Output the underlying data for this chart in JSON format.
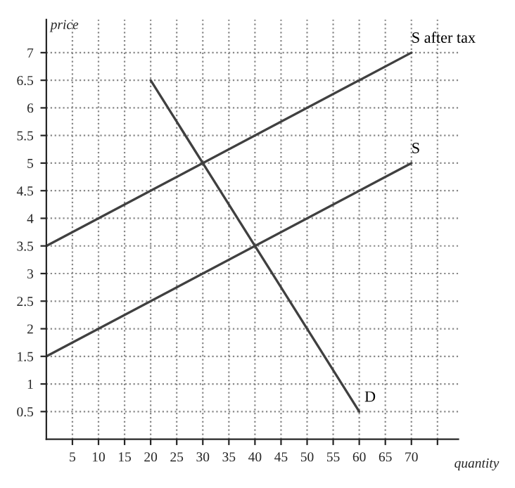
{
  "chart_data": {
    "type": "line",
    "xlabel": "quantity",
    "ylabel": "price",
    "xlim": [
      0,
      79
    ],
    "ylim": [
      0,
      7.6
    ],
    "xticks": [
      5,
      10,
      15,
      20,
      25,
      30,
      35,
      40,
      45,
      50,
      55,
      60,
      65,
      70,
      {
        "value": 75,
        "label": null
      }
    ],
    "yticks": [
      0.5,
      1,
      1.5,
      2,
      2.5,
      3,
      3.5,
      4,
      4.5,
      5,
      5.5,
      6,
      6.5,
      7
    ],
    "grid": true,
    "legend": false,
    "marker": "none",
    "line_style": "solid",
    "series": [
      {
        "name": "S after tax",
        "color": "#404040",
        "x": [
          0,
          70
        ],
        "values": [
          3.5,
          7
        ]
      },
      {
        "name": "S",
        "color": "#404040",
        "x": [
          0,
          70
        ],
        "values": [
          1.5,
          5
        ]
      },
      {
        "name": "D",
        "color": "#404040",
        "x": [
          20,
          60
        ],
        "values": [
          6.5,
          0.5
        ]
      }
    ]
  }
}
